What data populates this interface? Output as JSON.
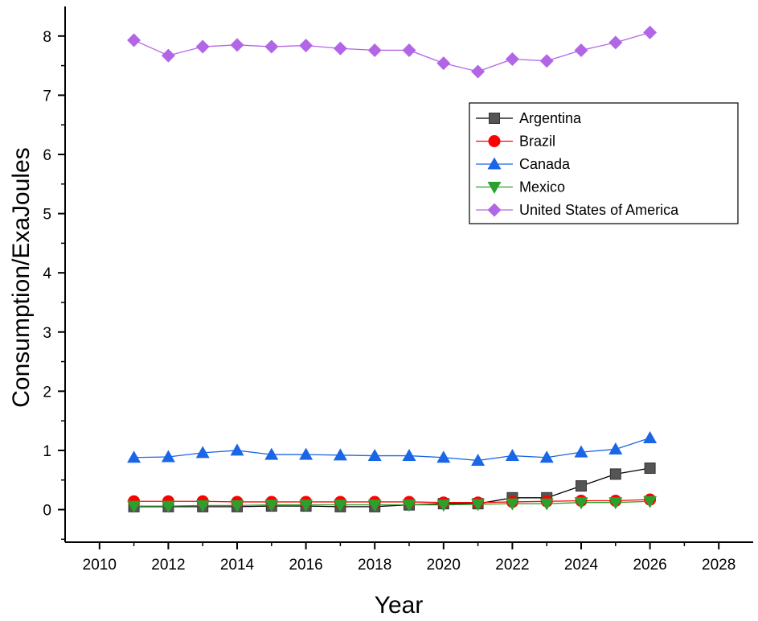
{
  "chart_data": {
    "type": "line",
    "title": "",
    "xlabel": "Year",
    "ylabel": "Consumption/ExaJoules",
    "xlim": [
      2009,
      2029
    ],
    "ylim": [
      -0.55,
      8.5
    ],
    "x_ticks": [
      2010,
      2012,
      2014,
      2016,
      2018,
      2020,
      2022,
      2024,
      2026,
      2028
    ],
    "y_ticks": [
      0,
      1,
      2,
      3,
      4,
      5,
      6,
      7,
      8
    ],
    "x_tick_labels": [
      "2010",
      "2012",
      "2014",
      "2016",
      "2018",
      "2020",
      "2022",
      "2024",
      "2026",
      "2028"
    ],
    "y_tick_labels": [
      "0",
      "1",
      "2",
      "3",
      "4",
      "5",
      "6",
      "7",
      "8"
    ],
    "legend_position": "top-right",
    "x": [
      2011,
      2012,
      2013,
      2014,
      2015,
      2016,
      2017,
      2018,
      2019,
      2020,
      2021,
      2022,
      2023,
      2024,
      2025,
      2026
    ],
    "series": [
      {
        "name": "Argentina",
        "color": "#000000",
        "marker": "square",
        "values": [
          0.05,
          0.05,
          0.05,
          0.05,
          0.06,
          0.06,
          0.05,
          0.05,
          0.08,
          0.1,
          0.1,
          0.2,
          0.2,
          0.4,
          0.6,
          0.7
        ]
      },
      {
        "name": "Brazil",
        "color": "#ff0000",
        "marker": "circle",
        "values": [
          0.14,
          0.14,
          0.14,
          0.13,
          0.13,
          0.13,
          0.13,
          0.13,
          0.13,
          0.12,
          0.12,
          0.13,
          0.14,
          0.15,
          0.15,
          0.17
        ]
      },
      {
        "name": "Canada",
        "color": "#1a66e6",
        "marker": "triangle-up",
        "values": [
          0.88,
          0.89,
          0.96,
          1.0,
          0.93,
          0.93,
          0.92,
          0.91,
          0.91,
          0.88,
          0.83,
          0.91,
          0.88,
          0.97,
          1.02,
          1.21
        ]
      },
      {
        "name": "Mexico",
        "color": "#2ca02c",
        "marker": "triangle-down",
        "values": [
          0.06,
          0.06,
          0.07,
          0.07,
          0.08,
          0.08,
          0.08,
          0.08,
          0.08,
          0.08,
          0.09,
          0.1,
          0.1,
          0.12,
          0.12,
          0.14
        ]
      },
      {
        "name": "United States of America",
        "color": "#b266e6",
        "marker": "diamond",
        "values": [
          7.93,
          7.67,
          7.82,
          7.85,
          7.82,
          7.84,
          7.79,
          7.76,
          7.76,
          7.54,
          7.4,
          7.61,
          7.58,
          7.76,
          7.89,
          8.06
        ]
      }
    ]
  }
}
